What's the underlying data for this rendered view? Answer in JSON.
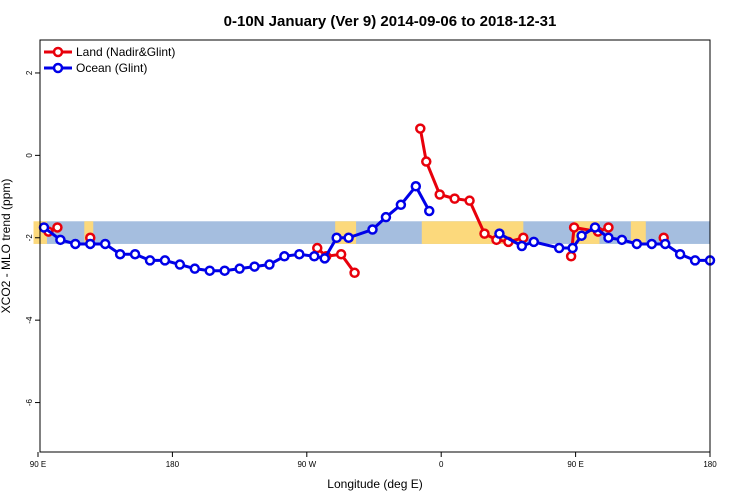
{
  "chart_data": {
    "type": "line",
    "title": "0-10N January (Ver 9)   2014-09-06 to 2018-12-31",
    "xlabel": "Longitude (deg E)",
    "ylabel": "XCO2 - MLO trend (ppm)",
    "x_ticks": [
      {
        "value": 90,
        "label": "90 E"
      },
      {
        "value": 180,
        "label": "180"
      },
      {
        "value": 270,
        "label": "90 W"
      },
      {
        "value": 360,
        "label": "0"
      },
      {
        "value": 450,
        "label": "90 E"
      },
      {
        "value": 540,
        "label": "180"
      }
    ],
    "y_ticks": [
      {
        "value": 2,
        "label": "2"
      },
      {
        "value": 0,
        "label": "0"
      },
      {
        "value": -2,
        "label": "-2"
      },
      {
        "value": -4,
        "label": "-4"
      },
      {
        "value": -6,
        "label": "-6"
      }
    ],
    "xlim": [
      90,
      540
    ],
    "ylim": [
      -7.2,
      2.8
    ],
    "grid": false,
    "legend_position": "top-left",
    "background_band": {
      "y_range": [
        -1.6,
        -2.15
      ],
      "ocean_color": "#a5bedf",
      "land_color": "#fcd97c"
    },
    "series": [
      {
        "name": "Land (Nadir&Glint)",
        "color": "#e8000b",
        "segments": [
          {
            "x": [
              97,
              103
            ],
            "y": [
              -1.85,
              -1.75
            ]
          },
          {
            "x": [
              125
            ],
            "y": [
              -2.0
            ]
          },
          {
            "x": [
              277,
              283,
              293,
              302
            ],
            "y": [
              -2.25,
              -2.45,
              -2.4,
              -2.85
            ]
          },
          {
            "x": [
              346,
              350,
              359,
              369,
              379,
              389,
              397,
              405,
              415
            ],
            "y": [
              0.65,
              -0.15,
              -0.95,
              -1.05,
              -1.1,
              -1.9,
              -2.05,
              -2.1,
              -2.0
            ]
          },
          {
            "x": [
              447,
              449,
              465,
              472
            ],
            "y": [
              -2.45,
              -1.75,
              -1.85,
              -1.75
            ]
          },
          {
            "x": [
              509
            ],
            "y": [
              -2.0
            ]
          }
        ]
      },
      {
        "name": "Ocean (Glint)",
        "color": "#0000e8",
        "segments": [
          {
            "x": [
              94,
              105,
              115,
              125,
              135,
              145,
              155,
              165,
              175,
              185,
              195,
              205,
              215,
              225,
              235,
              245,
              255,
              265,
              275,
              282,
              290,
              298,
              314,
              323,
              333,
              343,
              352
            ],
            "y": [
              -1.75,
              -2.05,
              -2.15,
              -2.15,
              -2.15,
              -2.4,
              -2.4,
              -2.55,
              -2.55,
              -2.65,
              -2.75,
              -2.8,
              -2.8,
              -2.75,
              -2.7,
              -2.65,
              -2.45,
              -2.4,
              -2.45,
              -2.5,
              -2.0,
              -2.0,
              -1.8,
              -1.5,
              -1.2,
              -0.75,
              -1.35
            ]
          },
          {
            "x": [
              399,
              414,
              422,
              439,
              448,
              454,
              463,
              472,
              481,
              491,
              501,
              510,
              520,
              530,
              540
            ],
            "y": [
              -1.9,
              -2.2,
              -2.1,
              -2.25,
              -2.25,
              -1.95,
              -1.75,
              -2.0,
              -2.05,
              -2.15,
              -2.15,
              -2.15,
              -2.4,
              -2.55,
              -2.55
            ]
          }
        ]
      }
    ]
  }
}
